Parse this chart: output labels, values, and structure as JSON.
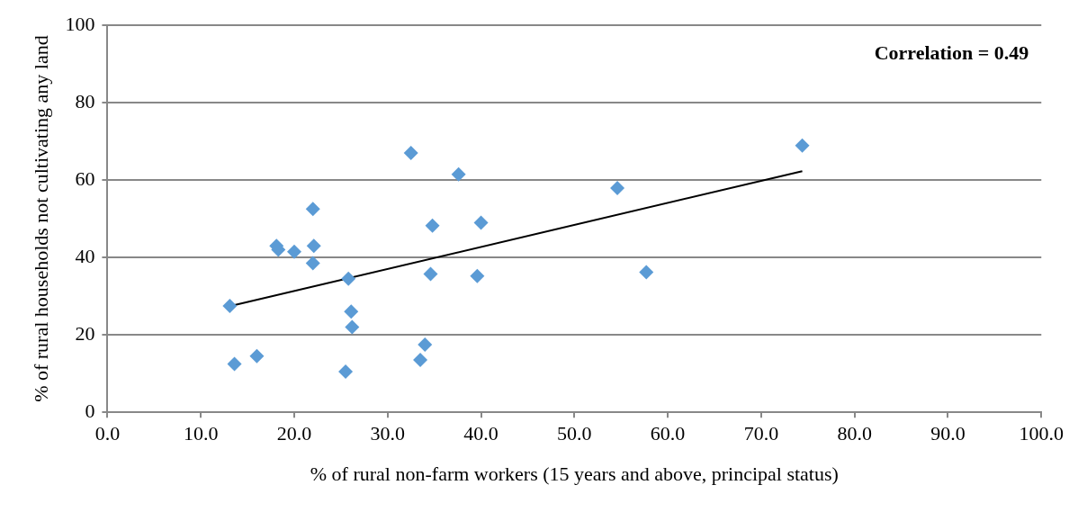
{
  "chart_data": {
    "type": "scatter",
    "xlabel": "% of rural non-farm workers (15 years and above, principal status)",
    "ylabel": "% of rural households not cultivating any land",
    "annotations": [
      "Correlation = 0.49"
    ],
    "marker": "diamond",
    "grid": "y",
    "xlim": [
      0,
      100
    ],
    "ylim": [
      0,
      100
    ],
    "xticks": [
      {
        "value": 0,
        "label": "0.0"
      },
      {
        "value": 10,
        "label": "10.0"
      },
      {
        "value": 20,
        "label": "20.0"
      },
      {
        "value": 30,
        "label": "30.0"
      },
      {
        "value": 40,
        "label": "40.0"
      },
      {
        "value": 50,
        "label": "50.0"
      },
      {
        "value": 60,
        "label": "60.0"
      },
      {
        "value": 70,
        "label": "70.0"
      },
      {
        "value": 80,
        "label": "80.0"
      },
      {
        "value": 90,
        "label": "90.0"
      },
      {
        "value": 100,
        "label": "100.0"
      }
    ],
    "yticks": [
      0,
      20,
      40,
      60,
      80,
      100
    ],
    "series": [
      {
        "color": "#5b9bd5",
        "x": [
          13.1,
          13.6,
          16,
          18.1,
          18.3,
          20,
          22,
          22.1,
          22,
          25.8,
          26.1,
          26.2,
          25.5,
          32.5,
          34,
          33.5,
          37.6,
          34.8,
          34.6,
          40,
          39.6,
          54.6,
          57.7,
          74.4
        ],
        "values": [
          27.5,
          12.5,
          14.5,
          43,
          42,
          41.5,
          52.5,
          43,
          38.5,
          34.5,
          26,
          22,
          10.5,
          67,
          17.5,
          13.5,
          61.5,
          48.2,
          35.7,
          49,
          35.2,
          57.9,
          36.2,
          68.9
        ]
      },
      {
        "type": "line",
        "color": "#000000",
        "marker": "none",
        "x": [
          13.1,
          74.4
        ],
        "values": [
          27.4,
          62.3
        ]
      }
    ]
  }
}
